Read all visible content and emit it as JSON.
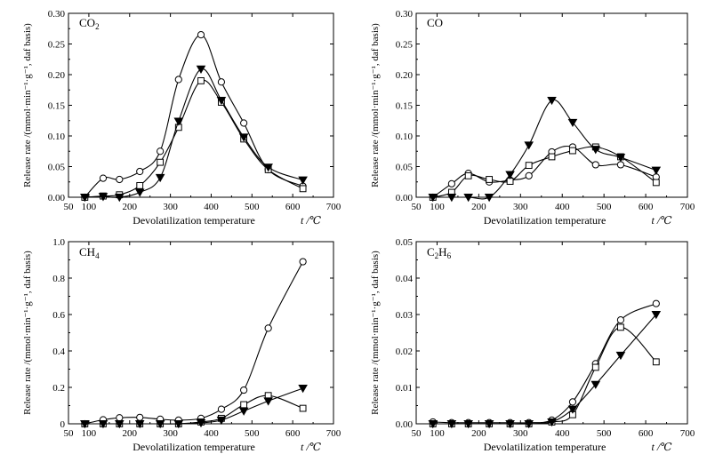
{
  "chart_data": [
    {
      "type": "line",
      "title": "CO2",
      "xlabel": "Devolatilization temperature",
      "xunit": "t /℃",
      "ylabel": "Release rate /(mmol·min⁻¹·g⁻¹, daf basis)",
      "xlim": [
        50,
        700
      ],
      "ylim": [
        0,
        0.3
      ],
      "xticks": [
        "50",
        "100",
        "200",
        "300",
        "400",
        "500",
        "600",
        "700"
      ],
      "yticks": [
        "0.00",
        "0.05",
        "0.10",
        "0.15",
        "0.20",
        "0.25",
        "0.30"
      ],
      "series": [
        {
          "marker": "circle",
          "x": [
            90,
            135,
            175,
            225,
            275,
            320,
            375,
            425,
            480,
            540,
            625
          ],
          "values": [
            0,
            0.031,
            0.029,
            0.042,
            0.075,
            0.192,
            0.265,
            0.188,
            0.121,
            0.045,
            0.018
          ]
        },
        {
          "marker": "square",
          "x": [
            90,
            135,
            175,
            225,
            275,
            320,
            375,
            425,
            480,
            540,
            625
          ],
          "values": [
            0,
            0.002,
            0.004,
            0.019,
            0.057,
            0.114,
            0.19,
            0.155,
            0.095,
            0.045,
            0.014
          ]
        },
        {
          "marker": "triangle",
          "x": [
            90,
            135,
            175,
            225,
            275,
            320,
            375,
            425,
            480,
            540,
            625
          ],
          "values": [
            0,
            0.001,
            0,
            0.008,
            0.032,
            0.124,
            0.209,
            0.158,
            0.098,
            0.049,
            0.028
          ]
        }
      ]
    },
    {
      "type": "line",
      "title": "CO",
      "xlabel": "Devolatilization temperature",
      "xunit": "t /℃",
      "ylabel": "Release rate /(mmol·min⁻¹·g⁻¹, daf basis)",
      "xlim": [
        50,
        700
      ],
      "ylim": [
        0,
        0.3
      ],
      "xticks": [
        "50",
        "100",
        "200",
        "300",
        "400",
        "500",
        "600",
        "700"
      ],
      "yticks": [
        "0.00",
        "0.05",
        "0.10",
        "0.15",
        "0.20",
        "0.25",
        "0.30"
      ],
      "series": [
        {
          "marker": "circle",
          "x": [
            90,
            135,
            175,
            225,
            275,
            320,
            375,
            425,
            480,
            540,
            625
          ],
          "values": [
            0,
            0.022,
            0.039,
            0.025,
            0.028,
            0.035,
            0.074,
            0.082,
            0.053,
            0.053,
            0.033
          ]
        },
        {
          "marker": "square",
          "x": [
            90,
            135,
            175,
            225,
            275,
            320,
            375,
            425,
            480,
            540,
            625
          ],
          "values": [
            0,
            0.008,
            0.035,
            0.029,
            0.026,
            0.052,
            0.066,
            0.076,
            0.082,
            0.066,
            0.024
          ]
        },
        {
          "marker": "triangle",
          "x": [
            90,
            135,
            175,
            225,
            275,
            320,
            375,
            425,
            480,
            540,
            625
          ],
          "values": [
            0,
            0,
            0,
            0,
            0.037,
            0.085,
            0.158,
            0.122,
            0.078,
            0.065,
            0.044
          ]
        }
      ]
    },
    {
      "type": "line",
      "title": "CH4",
      "xlabel": "Devolatilization temperature",
      "xunit": "t /℃",
      "ylabel": "Release rate /(mmol·min⁻¹·g⁻¹, daf basis)",
      "xlim": [
        50,
        700
      ],
      "ylim": [
        0,
        1.0
      ],
      "xticks": [
        "50",
        "100",
        "200",
        "300",
        "400",
        "500",
        "600",
        "700"
      ],
      "yticks": [
        "0",
        "0.2",
        "0.4",
        "0.6",
        "0.8",
        "1.0"
      ],
      "series": [
        {
          "marker": "circle",
          "x": [
            90,
            135,
            175,
            225,
            275,
            320,
            375,
            425,
            480,
            540,
            625
          ],
          "values": [
            0,
            0.022,
            0.033,
            0.035,
            0.025,
            0.02,
            0.03,
            0.08,
            0.185,
            0.525,
            0.89
          ]
        },
        {
          "marker": "square",
          "x": [
            90,
            135,
            175,
            225,
            275,
            320,
            375,
            425,
            480,
            540,
            625
          ],
          "values": [
            0,
            0,
            0,
            0,
            0,
            0,
            0.01,
            0.03,
            0.105,
            0.155,
            0.085
          ]
        },
        {
          "marker": "triangle",
          "x": [
            90,
            135,
            175,
            225,
            275,
            320,
            375,
            425,
            480,
            540,
            625
          ],
          "values": [
            0,
            0,
            0,
            0,
            0,
            0,
            0.005,
            0.02,
            0.07,
            0.125,
            0.195
          ]
        }
      ]
    },
    {
      "type": "line",
      "title": "C2H6",
      "xlabel": "Devolatilization temperature",
      "xunit": "t /℃",
      "ylabel": "Release rate /(mmol·min⁻¹·g⁻¹, daf basis)",
      "xlim": [
        50,
        700
      ],
      "ylim": [
        0,
        0.05
      ],
      "xticks": [
        "50",
        "100",
        "200",
        "300",
        "400",
        "500",
        "600",
        "700"
      ],
      "yticks": [
        "0.00",
        "0.01",
        "0.02",
        "0.03",
        "0.04",
        "0.05"
      ],
      "series": [
        {
          "marker": "circle",
          "x": [
            90,
            135,
            175,
            225,
            275,
            320,
            375,
            425,
            480,
            540,
            625
          ],
          "values": [
            0.0005,
            0.0003,
            0.0003,
            0.0003,
            0.0003,
            0.0003,
            0.001,
            0.006,
            0.0165,
            0.0285,
            0.033
          ]
        },
        {
          "marker": "square",
          "x": [
            90,
            135,
            175,
            225,
            275,
            320,
            375,
            425,
            480,
            540,
            625
          ],
          "values": [
            0,
            0,
            0,
            0,
            0,
            0,
            0.0005,
            0.0025,
            0.0155,
            0.0265,
            0.017
          ]
        },
        {
          "marker": "triangle",
          "x": [
            90,
            135,
            175,
            225,
            275,
            320,
            375,
            425,
            480,
            540,
            625
          ],
          "values": [
            0,
            0,
            0,
            0,
            0,
            0,
            0.0005,
            0.004,
            0.0108,
            0.0188,
            0.03
          ]
        }
      ]
    }
  ]
}
